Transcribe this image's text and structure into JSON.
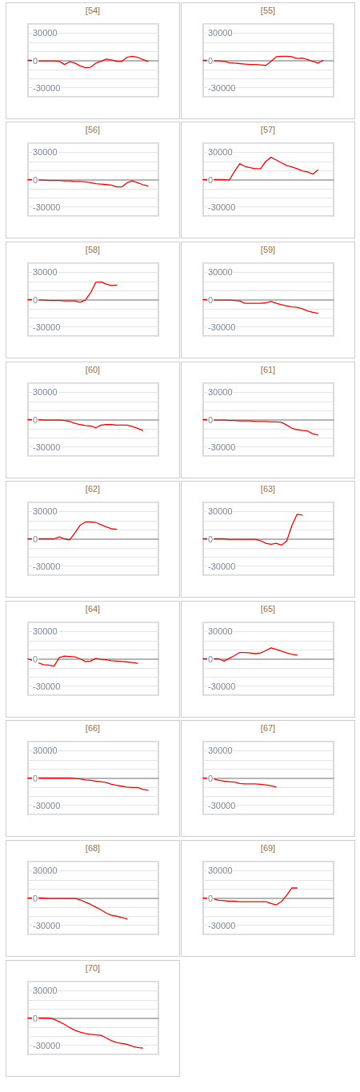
{
  "chart_data": [
    {
      "type": "line",
      "title": "[54]",
      "categories": [
        null,
        null,
        null,
        null,
        null,
        null,
        null,
        null,
        null,
        null,
        null,
        null,
        null,
        null,
        null,
        null,
        null,
        null,
        null,
        null,
        null,
        null,
        null,
        null,
        null,
        null
      ],
      "values": [
        0,
        0,
        -500,
        -500,
        -500,
        -500,
        -1000,
        -4500,
        -1500,
        -3000,
        -6000,
        -8000,
        -7500,
        -3000,
        -1000,
        1500,
        500,
        -1000,
        -1000,
        3500,
        4500,
        3500,
        1000,
        -1000,
        null,
        null
      ],
      "color": "#ff0000",
      "ylim": [
        -40000,
        40000
      ],
      "yticks": [
        -30000,
        {
          "value": -20000,
          "label": null
        },
        {
          "value": -10000,
          "label": null
        },
        0,
        {
          "value": 10000,
          "label": null
        },
        {
          "value": 20000,
          "label": null
        },
        30000
      ],
      "grid": "y",
      "tick_labels": "y",
      "marker": "none"
    },
    {
      "type": "line",
      "title": "[55]",
      "categories": [
        null,
        null,
        null,
        null,
        null,
        null,
        null,
        null,
        null,
        null,
        null,
        null,
        null,
        null,
        null,
        null,
        null,
        null,
        null,
        null,
        null,
        null,
        null,
        null,
        null,
        null
      ],
      "values": [
        0,
        0,
        -500,
        -500,
        -1000,
        -2500,
        -3000,
        -3500,
        -4000,
        -4500,
        -4500,
        -5000,
        -5500,
        -1000,
        4000,
        4500,
        4500,
        4000,
        2000,
        2500,
        1000,
        -1000,
        -3000,
        0,
        null,
        null
      ],
      "color": "#ff0000",
      "ylim": [
        -40000,
        40000
      ],
      "yticks": [
        -30000,
        {
          "value": -20000,
          "label": null
        },
        {
          "value": -10000,
          "label": null
        },
        0,
        {
          "value": 10000,
          "label": null
        },
        {
          "value": 20000,
          "label": null
        },
        30000
      ],
      "grid": "y",
      "tick_labels": "y",
      "marker": "none"
    },
    {
      "type": "line",
      "title": "[56]",
      "categories": [
        null,
        null,
        null,
        null,
        null,
        null,
        null,
        null,
        null,
        null,
        null,
        null,
        null,
        null,
        null,
        null,
        null,
        null,
        null,
        null,
        null,
        null,
        null,
        null,
        null,
        null
      ],
      "values": [
        0,
        0,
        -500,
        -500,
        -1000,
        -1000,
        -1000,
        -1500,
        -1500,
        -2000,
        -2000,
        -2500,
        -3500,
        -4500,
        -5000,
        -5500,
        -6000,
        -8000,
        -8000,
        -3500,
        -1500,
        -3500,
        -5500,
        -7000,
        null,
        null
      ],
      "color": "#ff0000",
      "ylim": [
        -40000,
        40000
      ],
      "yticks": [
        -30000,
        {
          "value": -20000,
          "label": null
        },
        {
          "value": -10000,
          "label": null
        },
        0,
        {
          "value": 10000,
          "label": null
        },
        {
          "value": 20000,
          "label": null
        },
        30000
      ],
      "grid": "y",
      "tick_labels": "y",
      "marker": "none"
    },
    {
      "type": "line",
      "title": "[57]",
      "categories": [
        null,
        null,
        null,
        null,
        null,
        null,
        null,
        null,
        null,
        null,
        null,
        null,
        null,
        null,
        null,
        null,
        null,
        null,
        null,
        null,
        null,
        null,
        null,
        null,
        null,
        null
      ],
      "values": [
        0,
        0,
        0,
        0,
        0,
        -500,
        9000,
        17500,
        14500,
        13000,
        12000,
        12000,
        20000,
        24500,
        21500,
        18500,
        15500,
        14000,
        12000,
        9500,
        8500,
        6000,
        10500,
        null,
        null,
        null
      ],
      "color": "#ff0000",
      "ylim": [
        -40000,
        40000
      ],
      "yticks": [
        -30000,
        {
          "value": -20000,
          "label": null
        },
        {
          "value": -10000,
          "label": null
        },
        0,
        {
          "value": 10000,
          "label": null
        },
        {
          "value": 20000,
          "label": null
        },
        30000
      ],
      "grid": "y",
      "tick_labels": "y",
      "marker": "none"
    },
    {
      "type": "line",
      "title": "[58]",
      "categories": [
        null,
        null,
        null,
        null,
        null,
        null,
        null,
        null,
        null,
        null,
        null,
        null,
        null,
        null,
        null,
        null,
        null,
        null,
        null,
        null,
        null,
        null,
        null,
        null,
        null,
        null
      ],
      "values": [
        0,
        0,
        -500,
        -500,
        -1000,
        -1000,
        -1000,
        -1500,
        -1500,
        -1500,
        -3000,
        -500,
        7500,
        19000,
        19500,
        17000,
        15500,
        16000,
        null,
        null,
        null,
        null,
        null,
        null,
        null,
        null
      ],
      "color": "#ff0000",
      "ylim": [
        -40000,
        40000
      ],
      "yticks": [
        -30000,
        {
          "value": -20000,
          "label": null
        },
        {
          "value": -10000,
          "label": null
        },
        0,
        {
          "value": 10000,
          "label": null
        },
        {
          "value": 20000,
          "label": null
        },
        30000
      ],
      "grid": "y",
      "tick_labels": "y",
      "marker": "none"
    },
    {
      "type": "line",
      "title": "[59]",
      "categories": [
        null,
        null,
        null,
        null,
        null,
        null,
        null,
        null,
        null,
        null,
        null,
        null,
        null,
        null,
        null,
        null,
        null,
        null,
        null,
        null,
        null,
        null,
        null,
        null,
        null,
        null
      ],
      "values": [
        0,
        0,
        -500,
        -500,
        -500,
        -500,
        -1000,
        -1500,
        -4000,
        -4000,
        -4000,
        -4000,
        -3500,
        -2000,
        -4000,
        -5500,
        -7000,
        -8000,
        -8500,
        -10000,
        -12500,
        -14000,
        -15000,
        null,
        null,
        null
      ],
      "color": "#ff0000",
      "ylim": [
        -40000,
        40000
      ],
      "yticks": [
        -30000,
        {
          "value": -20000,
          "label": null
        },
        {
          "value": -10000,
          "label": null
        },
        0,
        {
          "value": 10000,
          "label": null
        },
        {
          "value": 20000,
          "label": null
        },
        30000
      ],
      "grid": "y",
      "tick_labels": "y",
      "marker": "none"
    },
    {
      "type": "line",
      "title": "[60]",
      "categories": [
        null,
        null,
        null,
        null,
        null,
        null,
        null,
        null,
        null,
        null,
        null,
        null,
        null,
        null,
        null,
        null,
        null,
        null,
        null,
        null,
        null,
        null,
        null,
        null,
        null,
        null
      ],
      "values": [
        0,
        0,
        0,
        -500,
        -500,
        -500,
        -500,
        -1000,
        -2000,
        -4000,
        -5500,
        -6500,
        -7000,
        -9000,
        -6000,
        -5500,
        -5500,
        -6000,
        -6000,
        -6000,
        -7500,
        -9500,
        -12000,
        null,
        null,
        null
      ],
      "color": "#ff0000",
      "ylim": [
        -40000,
        40000
      ],
      "yticks": [
        -30000,
        {
          "value": -20000,
          "label": null
        },
        {
          "value": -10000,
          "label": null
        },
        0,
        {
          "value": 10000,
          "label": null
        },
        {
          "value": 20000,
          "label": null
        },
        30000
      ],
      "grid": "y",
      "tick_labels": "y",
      "marker": "none"
    },
    {
      "type": "line",
      "title": "[61]",
      "categories": [
        null,
        null,
        null,
        null,
        null,
        null,
        null,
        null,
        null,
        null,
        null,
        null,
        null,
        null,
        null,
        null,
        null,
        null,
        null,
        null,
        null,
        null,
        null,
        null,
        null,
        null
      ],
      "values": [
        0,
        0,
        -500,
        -500,
        -500,
        -1000,
        -1000,
        -1500,
        -1500,
        -1500,
        -2000,
        -2000,
        -2000,
        -2500,
        -2500,
        -3000,
        -6000,
        -9500,
        -11000,
        -12000,
        -12500,
        -15500,
        -17000,
        null,
        null,
        null
      ],
      "color": "#ff0000",
      "ylim": [
        -40000,
        40000
      ],
      "yticks": [
        -30000,
        {
          "value": -20000,
          "label": null
        },
        {
          "value": -10000,
          "label": null
        },
        0,
        {
          "value": 10000,
          "label": null
        },
        {
          "value": 20000,
          "label": null
        },
        30000
      ],
      "grid": "y",
      "tick_labels": "y",
      "marker": "none"
    },
    {
      "type": "line",
      "title": "[62]",
      "categories": [
        null,
        null,
        null,
        null,
        null,
        null,
        null,
        null,
        null,
        null,
        null,
        null,
        null,
        null,
        null,
        null,
        null,
        null,
        null,
        null,
        null,
        null,
        null,
        null,
        null,
        null
      ],
      "values": [
        0,
        0,
        0,
        0,
        0,
        0,
        2000,
        0,
        -1000,
        6500,
        15000,
        18500,
        18500,
        18000,
        15500,
        13000,
        11000,
        10500,
        null,
        null,
        null,
        null,
        null,
        null,
        null,
        null
      ],
      "color": "#ff0000",
      "ylim": [
        -40000,
        40000
      ],
      "yticks": [
        -30000,
        {
          "value": -20000,
          "label": null
        },
        {
          "value": -10000,
          "label": null
        },
        0,
        {
          "value": 10000,
          "label": null
        },
        {
          "value": 20000,
          "label": null
        },
        30000
      ],
      "grid": "y",
      "tick_labels": "y",
      "marker": "none"
    },
    {
      "type": "line",
      "title": "[63]",
      "categories": [
        null,
        null,
        null,
        null,
        null,
        null,
        null,
        null,
        null,
        null,
        null,
        null,
        null,
        null,
        null,
        null,
        null,
        null,
        null,
        null,
        null,
        null,
        null,
        null,
        null,
        null
      ],
      "values": [
        0,
        0,
        0,
        0,
        0,
        -500,
        -500,
        -500,
        -500,
        -500,
        -500,
        -2000,
        -5000,
        -6000,
        -5000,
        -7000,
        -2500,
        14500,
        27000,
        26000,
        null,
        null,
        null,
        null,
        null,
        null
      ],
      "color": "#ff0000",
      "ylim": [
        -40000,
        40000
      ],
      "yticks": [
        -30000,
        {
          "value": -20000,
          "label": null
        },
        {
          "value": -10000,
          "label": null
        },
        0,
        {
          "value": 10000,
          "label": null
        },
        {
          "value": 20000,
          "label": null
        },
        30000
      ],
      "grid": "y",
      "tick_labels": "y",
      "marker": "none"
    },
    {
      "type": "line",
      "title": "[64]",
      "categories": [
        null,
        null,
        null,
        null,
        null,
        null,
        null,
        null,
        null,
        null,
        null,
        null,
        null,
        null,
        null,
        null,
        null,
        null,
        null,
        null,
        null,
        null,
        null,
        null,
        null,
        null
      ],
      "values": [
        0,
        -2000,
        -4500,
        -6500,
        -7000,
        -8000,
        1500,
        3000,
        2500,
        2000,
        0,
        -3000,
        -2500,
        500,
        -500,
        -1000,
        -2000,
        -2500,
        -3000,
        -3500,
        -4000,
        -5000,
        null,
        null,
        null,
        null
      ],
      "color": "#ff0000",
      "ylim": [
        -40000,
        40000
      ],
      "yticks": [
        -30000,
        {
          "value": -20000,
          "label": null
        },
        {
          "value": -10000,
          "label": null
        },
        0,
        {
          "value": 10000,
          "label": null
        },
        {
          "value": 20000,
          "label": null
        },
        30000
      ],
      "grid": "y",
      "tick_labels": "y",
      "marker": "none"
    },
    {
      "type": "line",
      "title": "[65]",
      "categories": [
        null,
        null,
        null,
        null,
        null,
        null,
        null,
        null,
        null,
        null,
        null,
        null,
        null,
        null,
        null,
        null,
        null,
        null,
        null,
        null,
        null,
        null,
        null,
        null,
        null,
        null
      ],
      "values": [
        0,
        0,
        0,
        0,
        -2500,
        500,
        3500,
        7000,
        7000,
        6500,
        5500,
        6500,
        9000,
        12000,
        10500,
        8500,
        6500,
        5000,
        4000,
        null,
        null,
        null,
        null,
        null,
        null,
        null
      ],
      "color": "#ff0000",
      "ylim": [
        -40000,
        40000
      ],
      "yticks": [
        -30000,
        {
          "value": -20000,
          "label": null
        },
        {
          "value": -10000,
          "label": null
        },
        0,
        {
          "value": 10000,
          "label": null
        },
        {
          "value": 20000,
          "label": null
        },
        30000
      ],
      "grid": "y",
      "tick_labels": "y",
      "marker": "none"
    },
    {
      "type": "line",
      "title": "[66]",
      "categories": [
        null,
        null,
        null,
        null,
        null,
        null,
        null,
        null,
        null,
        null,
        null,
        null,
        null,
        null,
        null,
        null,
        null,
        null,
        null,
        null,
        null,
        null,
        null,
        null,
        null,
        null
      ],
      "values": [
        0,
        0,
        0,
        0,
        0,
        0,
        0,
        0,
        0,
        -500,
        -1000,
        -2000,
        -2500,
        -3500,
        -4000,
        -5000,
        -7000,
        -8000,
        -9000,
        -10000,
        -10500,
        -10500,
        -12500,
        -13500,
        null,
        null
      ],
      "color": "#ff0000",
      "ylim": [
        -40000,
        40000
      ],
      "yticks": [
        -30000,
        {
          "value": -20000,
          "label": null
        },
        {
          "value": -10000,
          "label": null
        },
        0,
        {
          "value": 10000,
          "label": null
        },
        {
          "value": 20000,
          "label": null
        },
        30000
      ],
      "grid": "y",
      "tick_labels": "y",
      "marker": "none"
    },
    {
      "type": "line",
      "title": "[67]",
      "categories": [
        null,
        null,
        null,
        null,
        null,
        null,
        null,
        null,
        null,
        null,
        null,
        null,
        null,
        null,
        null,
        null,
        null,
        null,
        null,
        null,
        null,
        null,
        null,
        null,
        null,
        null
      ],
      "values": [
        0,
        -500,
        -1000,
        -2500,
        -3500,
        -4000,
        -4500,
        -6000,
        -6500,
        -6500,
        -6500,
        -7000,
        -7500,
        -8500,
        -10000,
        null,
        null,
        null,
        null,
        null,
        null,
        null,
        null,
        null,
        null,
        null
      ],
      "color": "#ff0000",
      "ylim": [
        -40000,
        40000
      ],
      "yticks": [
        -30000,
        {
          "value": -20000,
          "label": null
        },
        {
          "value": -10000,
          "label": null
        },
        0,
        {
          "value": 10000,
          "label": null
        },
        {
          "value": 20000,
          "label": null
        },
        30000
      ],
      "grid": "y",
      "tick_labels": "y",
      "marker": "none"
    },
    {
      "type": "line",
      "title": "[68]",
      "categories": [
        null,
        null,
        null,
        null,
        null,
        null,
        null,
        null,
        null,
        null,
        null,
        null,
        null,
        null,
        null,
        null,
        null,
        null,
        null,
        null,
        null,
        null,
        null,
        null,
        null,
        null
      ],
      "values": [
        0,
        0,
        0,
        0,
        -500,
        -500,
        -500,
        -500,
        -500,
        -500,
        -2000,
        -4500,
        -7000,
        -10000,
        -13000,
        -16500,
        -19000,
        -20000,
        -21500,
        -23000,
        null,
        null,
        null,
        null,
        null,
        null
      ],
      "color": "#ff0000",
      "ylim": [
        -40000,
        40000
      ],
      "yticks": [
        -30000,
        {
          "value": -20000,
          "label": null
        },
        {
          "value": -10000,
          "label": null
        },
        0,
        {
          "value": 10000,
          "label": null
        },
        {
          "value": 20000,
          "label": null
        },
        30000
      ],
      "grid": "y",
      "tick_labels": "y",
      "marker": "none"
    },
    {
      "type": "line",
      "title": "[69]",
      "categories": [
        null,
        null,
        null,
        null,
        null,
        null,
        null,
        null,
        null,
        null,
        null,
        null,
        null,
        null,
        null,
        null,
        null,
        null,
        null,
        null,
        null,
        null,
        null,
        null,
        null,
        null
      ],
      "values": [
        0,
        -500,
        -1000,
        -2500,
        -3000,
        -3500,
        -3500,
        -4000,
        -4000,
        -4000,
        -4000,
        -4000,
        -4000,
        -6000,
        -7500,
        -4000,
        3000,
        11000,
        11000,
        null,
        null,
        null,
        null,
        null,
        null,
        null
      ],
      "color": "#ff0000",
      "ylim": [
        -40000,
        40000
      ],
      "yticks": [
        -30000,
        {
          "value": -20000,
          "label": null
        },
        {
          "value": -10000,
          "label": null
        },
        0,
        {
          "value": 10000,
          "label": null
        },
        {
          "value": 20000,
          "label": null
        },
        30000
      ],
      "grid": "y",
      "tick_labels": "y",
      "marker": "none"
    },
    {
      "type": "line",
      "title": "[70]",
      "categories": [
        null,
        null,
        null,
        null,
        null,
        null,
        null,
        null,
        null,
        null,
        null,
        null,
        null,
        null,
        null,
        null,
        null,
        null,
        null,
        null,
        null,
        null,
        null,
        null,
        null,
        null
      ],
      "values": [
        0,
        0,
        0,
        0,
        0,
        -1500,
        -4000,
        -7000,
        -10500,
        -13500,
        -15500,
        -17000,
        -18000,
        -18500,
        -19000,
        -22000,
        -25000,
        -27000,
        -28000,
        -29000,
        -31000,
        -32500,
        -33000,
        null,
        null,
        null
      ],
      "color": "#ff0000",
      "ylim": [
        -40000,
        40000
      ],
      "yticks": [
        -30000,
        {
          "value": -20000,
          "label": null
        },
        {
          "value": -10000,
          "label": null
        },
        0,
        {
          "value": 10000,
          "label": null
        },
        {
          "value": 20000,
          "label": null
        },
        30000
      ],
      "grid": "y",
      "tick_labels": "y",
      "marker": "none"
    }
  ]
}
